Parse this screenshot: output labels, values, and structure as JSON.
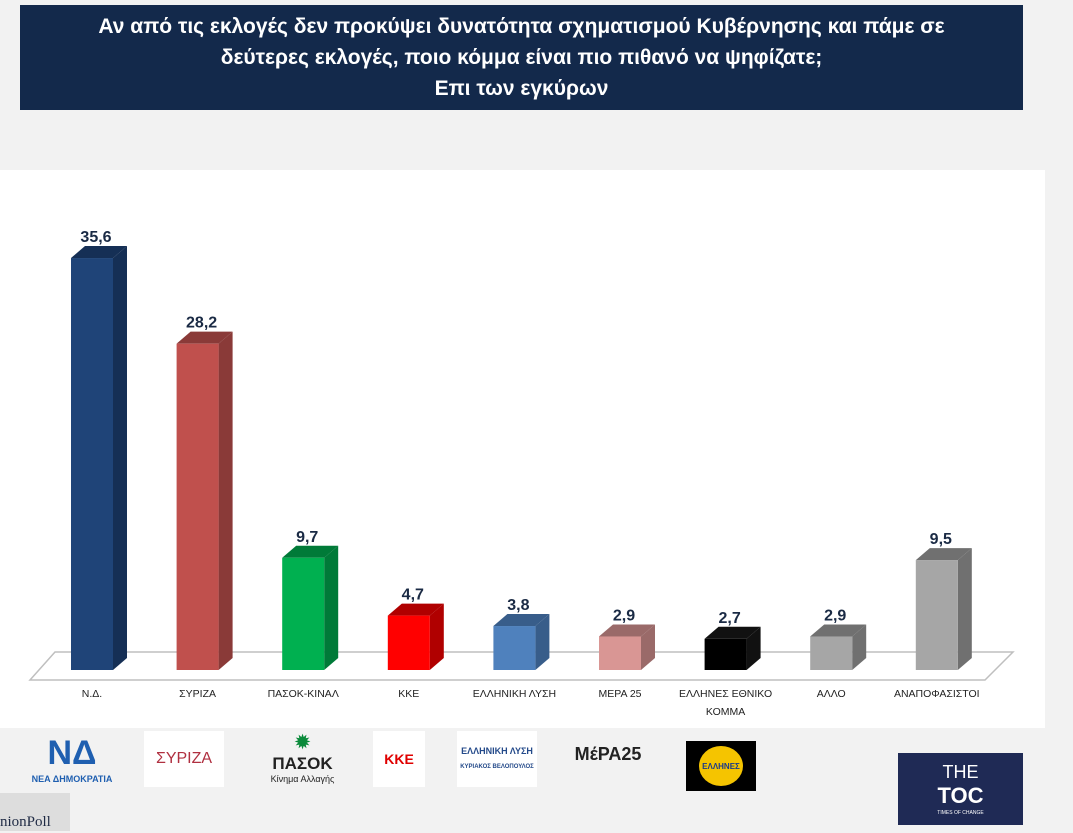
{
  "title": {
    "line1": "Αν από τις εκλογές δεν προκύψει δυνατότητα σχηματισμού Κυβέρνησης και πάμε σε",
    "line2": "δεύτερες εκλογές, ποιο κόμμα είναι πιο πιθανό να ψηφίζατε;",
    "line3": "Επι των εγκύρων"
  },
  "chart_data": {
    "type": "bar",
    "title": "Αν από τις εκλογές δεν προκύψει δυνατότητα σχηματισμού Κυβέρνησης και πάμε σε δεύτερες εκλογές, ποιο κόμμα είναι πιο πιθανό να ψηφίζατε; Επι των εγκύρων",
    "categories": [
      "Ν.Δ.",
      "ΣΥΡΙΖΑ",
      "ΠΑΣΟΚ-ΚΙΝΑΛ",
      "ΚΚΕ",
      "ΕΛΛΗΝΙΚΗ ΛΥΣΗ",
      "ΜΕΡΑ 25",
      "ΕΛΛΗΝΕΣ ΕΘΝΙΚΟ ΚΟΜΜΑ",
      "ΑΛΛΟ",
      "ΑΝΑΠΟΦΑΣΙΣΤΟΙ"
    ],
    "values": [
      35.6,
      28.2,
      9.7,
      4.7,
      3.8,
      2.9,
      2.7,
      2.9,
      9.5
    ],
    "labels": [
      "35,6",
      "28,2",
      "9,7",
      "4,7",
      "3,8",
      "2,9",
      "2,7",
      "2,9",
      "9,5"
    ],
    "colors": [
      "#1f4478",
      "#c0504d",
      "#00b050",
      "#ff0000",
      "#4f81bd",
      "#d99694",
      "#000000",
      "#a6a6a6",
      "#a6a6a6"
    ],
    "side_colors": [
      "#152f55",
      "#8a3a38",
      "#007a38",
      "#b00000",
      "#385d8a",
      "#9a6a69",
      "#111111",
      "#707070",
      "#707070"
    ],
    "xlabel": "",
    "ylabel": "",
    "ylim": [
      0,
      36
    ],
    "grid": false
  },
  "logos": {
    "nd": "ΝΕΑ ΔΗΜΟΚΡΑΤΙΑ",
    "syriza": "ΣΥΡΙΖΑ",
    "pasok": "ΠΑΣΟΚ",
    "pasok_sub": "Κίνημα Αλλαγής",
    "kke": "ΚΚΕ",
    "el": "ΕΛΛΗΝΙΚΗ ΛΥΣΗ",
    "el_sub": "ΚΥΡΙΑΚΟΣ ΒΕΛΟΠΟΥΛΟΣ",
    "mera": "ΜέΡΑ25",
    "ellines": "ΕΛΛΗΝΕΣ",
    "opinion": "nionPoll",
    "toc1": "THE",
    "toc2": "TOC",
    "toc3": "TIMES OF CHANGE"
  }
}
